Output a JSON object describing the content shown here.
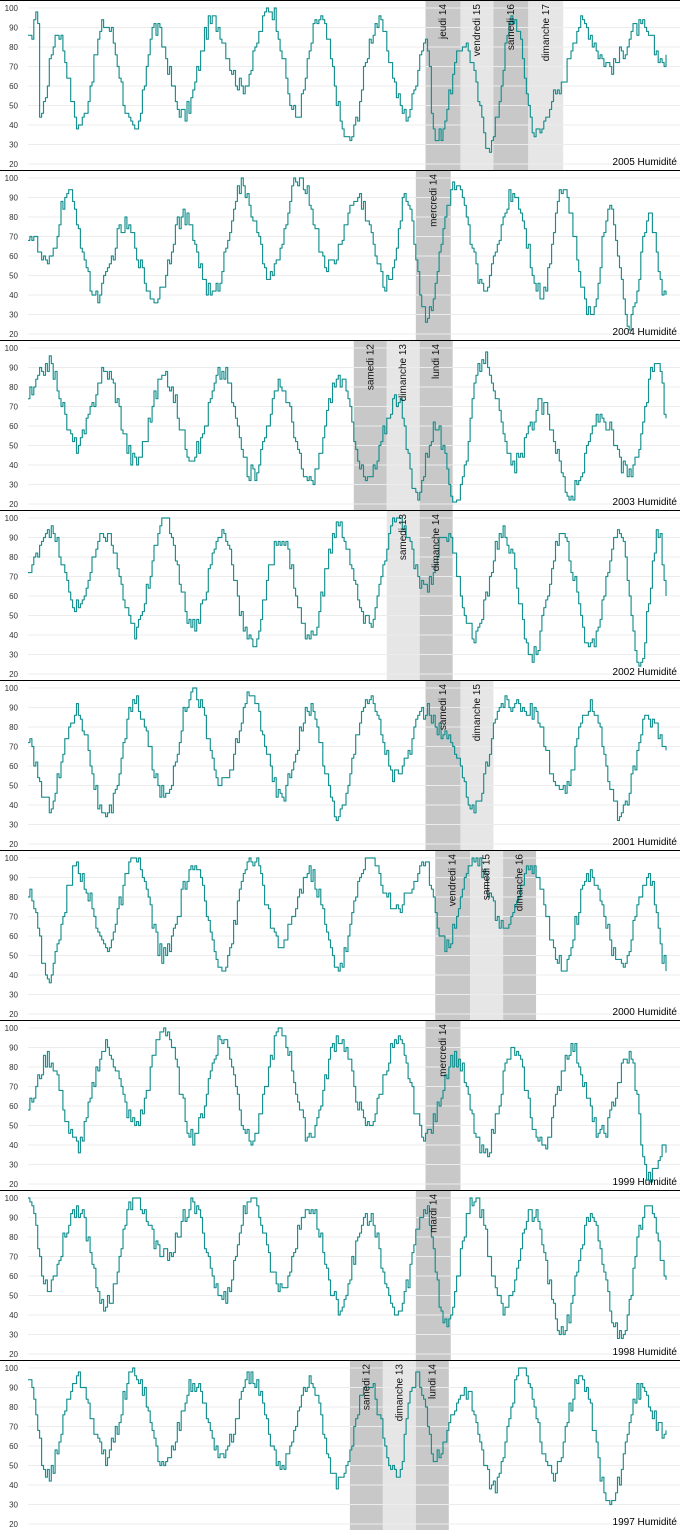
{
  "chart_data": [
    {
      "type": "line",
      "title": "2005 Humidité",
      "ylim": [
        20,
        100
      ],
      "yticks": [
        20,
        30,
        40,
        50,
        60,
        70,
        80,
        90,
        100
      ],
      "grid": true,
      "series_color": "#14908f",
      "n_points": 330,
      "extremes": [
        [
          0,
          82
        ],
        [
          1,
          82
        ],
        [
          3,
          95
        ],
        [
          5,
          95
        ],
        [
          6,
          45
        ],
        [
          15,
          88
        ],
        [
          26,
          40
        ],
        [
          40,
          92
        ],
        [
          55,
          35
        ],
        [
          65,
          90
        ],
        [
          80,
          45
        ],
        [
          95,
          93
        ],
        [
          110,
          60
        ],
        [
          125,
          100
        ],
        [
          138,
          45
        ],
        [
          150,
          95
        ],
        [
          165,
          32
        ],
        [
          180,
          92
        ],
        [
          195,
          45
        ],
        [
          205,
          85
        ],
        [
          210,
          32
        ],
        [
          225,
          82
        ],
        [
          238,
          30
        ],
        [
          250,
          95
        ],
        [
          262,
          35
        ],
        [
          272,
          55
        ],
        [
          285,
          92
        ],
        [
          300,
          70
        ],
        [
          315,
          90
        ],
        [
          329,
          72
        ]
      ],
      "bands": [
        {
          "label": "jeudi 14",
          "start": 205,
          "end": 223,
          "shade": "dark"
        },
        {
          "label": "vendredi 15",
          "start": 223,
          "end": 240,
          "shade": "light"
        },
        {
          "label": "samedi 16",
          "start": 240,
          "end": 258,
          "shade": "dark"
        },
        {
          "label": "dimanche 17",
          "start": 258,
          "end": 276,
          "shade": "light"
        }
      ]
    },
    {
      "type": "line",
      "title": "2004 Humidité",
      "ylim": [
        20,
        100
      ],
      "yticks": [
        20,
        30,
        40,
        50,
        60,
        70,
        80,
        90,
        100
      ],
      "grid": true,
      "series_color": "#14908f",
      "n_points": 330,
      "extremes": [
        [
          0,
          72
        ],
        [
          10,
          55
        ],
        [
          20,
          92
        ],
        [
          35,
          40
        ],
        [
          50,
          75
        ],
        [
          65,
          38
        ],
        [
          80,
          80
        ],
        [
          95,
          40
        ],
        [
          110,
          95
        ],
        [
          125,
          50
        ],
        [
          140,
          100
        ],
        [
          155,
          55
        ],
        [
          170,
          90
        ],
        [
          185,
          45
        ],
        [
          195,
          90
        ],
        [
          205,
          30
        ],
        [
          220,
          95
        ],
        [
          235,
          45
        ],
        [
          250,
          92
        ],
        [
          265,
          40
        ],
        [
          275,
          95
        ],
        [
          290,
          30
        ],
        [
          300,
          85
        ],
        [
          310,
          25
        ],
        [
          320,
          80
        ],
        [
          329,
          38
        ]
      ],
      "bands": [
        {
          "label": "mercredi 14",
          "start": 200,
          "end": 218,
          "shade": "dark"
        }
      ]
    },
    {
      "type": "line",
      "title": "2003 Humidité",
      "ylim": [
        20,
        100
      ],
      "yticks": [
        20,
        30,
        40,
        50,
        60,
        70,
        80,
        90,
        100
      ],
      "grid": true,
      "series_color": "#14908f",
      "n_points": 330,
      "extremes": [
        [
          0,
          75
        ],
        [
          10,
          92
        ],
        [
          25,
          50
        ],
        [
          40,
          88
        ],
        [
          55,
          42
        ],
        [
          70,
          85
        ],
        [
          85,
          45
        ],
        [
          100,
          88
        ],
        [
          115,
          35
        ],
        [
          130,
          80
        ],
        [
          145,
          30
        ],
        [
          160,
          85
        ],
        [
          175,
          32
        ],
        [
          190,
          75
        ],
        [
          200,
          25
        ],
        [
          210,
          60
        ],
        [
          220,
          22
        ],
        [
          235,
          95
        ],
        [
          250,
          40
        ],
        [
          265,
          70
        ],
        [
          280,
          25
        ],
        [
          295,
          65
        ],
        [
          310,
          35
        ],
        [
          325,
          95
        ],
        [
          329,
          62
        ]
      ],
      "bands": [
        {
          "label": "samedi 12",
          "start": 168,
          "end": 185,
          "shade": "dark"
        },
        {
          "label": "dimanche 13",
          "start": 185,
          "end": 202,
          "shade": "light"
        },
        {
          "label": "lundi 14",
          "start": 202,
          "end": 219,
          "shade": "dark"
        }
      ]
    },
    {
      "type": "line",
      "title": "2002 Humidité",
      "ylim": [
        20,
        100
      ],
      "yticks": [
        20,
        30,
        40,
        50,
        60,
        70,
        80,
        90,
        100
      ],
      "grid": true,
      "series_color": "#14908f",
      "n_points": 330,
      "extremes": [
        [
          0,
          72
        ],
        [
          10,
          95
        ],
        [
          25,
          55
        ],
        [
          40,
          92
        ],
        [
          55,
          42
        ],
        [
          70,
          100
        ],
        [
          85,
          45
        ],
        [
          100,
          92
        ],
        [
          115,
          35
        ],
        [
          130,
          90
        ],
        [
          145,
          38
        ],
        [
          160,
          95
        ],
        [
          175,
          45
        ],
        [
          190,
          100
        ],
        [
          205,
          65
        ],
        [
          215,
          92
        ],
        [
          230,
          40
        ],
        [
          245,
          93
        ],
        [
          260,
          30
        ],
        [
          275,
          90
        ],
        [
          290,
          35
        ],
        [
          305,
          95
        ],
        [
          315,
          25
        ],
        [
          325,
          92
        ],
        [
          329,
          60
        ]
      ],
      "bands": [
        {
          "label": "samedi 13",
          "start": 185,
          "end": 202,
          "shade": "light"
        },
        {
          "label": "dimanche 14",
          "start": 202,
          "end": 219,
          "shade": "dark"
        }
      ]
    },
    {
      "type": "line",
      "title": "2001 Humidité",
      "ylim": [
        20,
        100
      ],
      "yticks": [
        20,
        30,
        40,
        50,
        60,
        70,
        80,
        90,
        100
      ],
      "grid": true,
      "series_color": "#14908f",
      "n_points": 330,
      "extremes": [
        [
          0,
          70
        ],
        [
          10,
          40
        ],
        [
          25,
          88
        ],
        [
          40,
          32
        ],
        [
          55,
          92
        ],
        [
          70,
          45
        ],
        [
          85,
          100
        ],
        [
          100,
          50
        ],
        [
          115,
          95
        ],
        [
          130,
          45
        ],
        [
          145,
          88
        ],
        [
          160,
          35
        ],
        [
          175,
          95
        ],
        [
          190,
          55
        ],
        [
          205,
          88
        ],
        [
          215,
          75
        ],
        [
          230,
          40
        ],
        [
          245,
          93
        ],
        [
          260,
          88
        ],
        [
          275,
          45
        ],
        [
          290,
          92
        ],
        [
          305,
          35
        ],
        [
          320,
          85
        ],
        [
          329,
          70
        ]
      ],
      "bands": [
        {
          "label": "samedi 14",
          "start": 205,
          "end": 223,
          "shade": "dark"
        },
        {
          "label": "dimanche 15",
          "start": 223,
          "end": 240,
          "shade": "light"
        }
      ]
    },
    {
      "type": "line",
      "title": "2000 Humidité",
      "ylim": [
        20,
        100
      ],
      "yticks": [
        20,
        30,
        40,
        50,
        60,
        70,
        80,
        90,
        100
      ],
      "grid": true,
      "series_color": "#14908f",
      "n_points": 330,
      "extremes": [
        [
          0,
          85
        ],
        [
          10,
          40
        ],
        [
          25,
          95
        ],
        [
          40,
          55
        ],
        [
          55,
          100
        ],
        [
          70,
          50
        ],
        [
          85,
          95
        ],
        [
          100,
          45
        ],
        [
          115,
          100
        ],
        [
          130,
          55
        ],
        [
          145,
          92
        ],
        [
          160,
          45
        ],
        [
          175,
          100
        ],
        [
          190,
          75
        ],
        [
          205,
          95
        ],
        [
          215,
          55
        ],
        [
          230,
          100
        ],
        [
          245,
          65
        ],
        [
          260,
          95
        ],
        [
          275,
          45
        ],
        [
          290,
          92
        ],
        [
          305,
          45
        ],
        [
          320,
          90
        ],
        [
          329,
          45
        ]
      ],
      "bands": [
        {
          "label": "vendredi 14",
          "start": 210,
          "end": 228,
          "shade": "dark"
        },
        {
          "label": "samedi 15",
          "start": 228,
          "end": 245,
          "shade": "light"
        },
        {
          "label": "dimanche 16",
          "start": 245,
          "end": 262,
          "shade": "dark"
        }
      ]
    },
    {
      "type": "line",
      "title": "1999 Humidité",
      "ylim": [
        20,
        100
      ],
      "yticks": [
        20,
        30,
        40,
        50,
        60,
        70,
        80,
        90,
        100
      ],
      "grid": true,
      "series_color": "#14908f",
      "n_points": 330,
      "extremes": [
        [
          0,
          60
        ],
        [
          10,
          85
        ],
        [
          25,
          40
        ],
        [
          40,
          90
        ],
        [
          55,
          50
        ],
        [
          70,
          100
        ],
        [
          85,
          45
        ],
        [
          100,
          95
        ],
        [
          115,
          42
        ],
        [
          130,
          98
        ],
        [
          145,
          45
        ],
        [
          160,
          95
        ],
        [
          175,
          50
        ],
        [
          190,
          92
        ],
        [
          205,
          45
        ],
        [
          220,
          85
        ],
        [
          235,
          35
        ],
        [
          250,
          88
        ],
        [
          265,
          40
        ],
        [
          280,
          90
        ],
        [
          295,
          45
        ],
        [
          310,
          85
        ],
        [
          320,
          22
        ],
        [
          329,
          40
        ]
      ],
      "bands": [
        {
          "label": "mercredi 14",
          "start": 205,
          "end": 223,
          "shade": "dark"
        }
      ]
    },
    {
      "type": "line",
      "title": "1998 Humidité",
      "ylim": [
        20,
        100
      ],
      "yticks": [
        20,
        30,
        40,
        50,
        60,
        70,
        80,
        90,
        100
      ],
      "grid": true,
      "series_color": "#14908f",
      "n_points": 330,
      "extremes": [
        [
          0,
          100
        ],
        [
          10,
          55
        ],
        [
          25,
          95
        ],
        [
          40,
          45
        ],
        [
          55,
          100
        ],
        [
          70,
          70
        ],
        [
          85,
          95
        ],
        [
          100,
          48
        ],
        [
          115,
          100
        ],
        [
          130,
          55
        ],
        [
          145,
          95
        ],
        [
          160,
          45
        ],
        [
          175,
          90
        ],
        [
          190,
          40
        ],
        [
          205,
          95
        ],
        [
          215,
          35
        ],
        [
          230,
          100
        ],
        [
          245,
          45
        ],
        [
          260,
          92
        ],
        [
          275,
          32
        ],
        [
          290,
          88
        ],
        [
          305,
          30
        ],
        [
          320,
          100
        ],
        [
          329,
          62
        ]
      ],
      "bands": [
        {
          "label": "mardi 14",
          "start": 200,
          "end": 218,
          "shade": "dark"
        }
      ]
    },
    {
      "type": "line",
      "title": "1997 Humidité",
      "ylim": [
        20,
        100
      ],
      "yticks": [
        20,
        30,
        40,
        50,
        60,
        70,
        80,
        90,
        100
      ],
      "grid": true,
      "series_color": "#14908f",
      "n_points": 330,
      "extremes": [
        [
          0,
          92
        ],
        [
          10,
          45
        ],
        [
          25,
          95
        ],
        [
          40,
          55
        ],
        [
          55,
          98
        ],
        [
          70,
          50
        ],
        [
          85,
          92
        ],
        [
          100,
          55
        ],
        [
          115,
          95
        ],
        [
          130,
          50
        ],
        [
          145,
          92
        ],
        [
          160,
          40
        ],
        [
          175,
          92
        ],
        [
          190,
          45
        ],
        [
          200,
          95
        ],
        [
          210,
          55
        ],
        [
          225,
          88
        ],
        [
          240,
          40
        ],
        [
          255,
          100
        ],
        [
          270,
          45
        ],
        [
          285,
          95
        ],
        [
          300,
          30
        ],
        [
          315,
          88
        ],
        [
          329,
          65
        ]
      ],
      "bands": [
        {
          "label": "samedi 12",
          "start": 166,
          "end": 183,
          "shade": "dark"
        },
        {
          "label": "dimanche 13",
          "start": 183,
          "end": 200,
          "shade": "light"
        },
        {
          "label": "lundi 14",
          "start": 200,
          "end": 217,
          "shade": "dark"
        }
      ]
    }
  ]
}
